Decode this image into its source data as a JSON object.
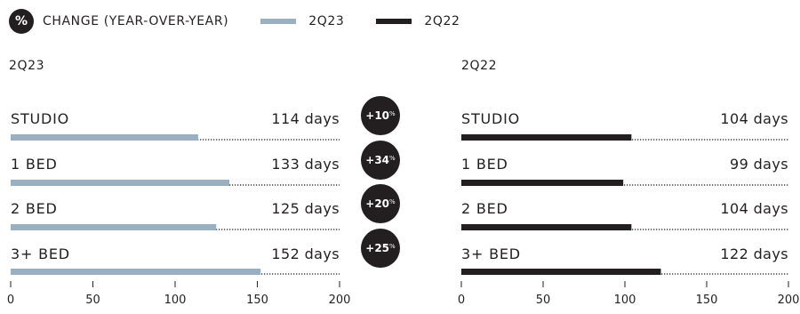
{
  "legend": {
    "badge": "%",
    "title": "CHANGE (YEAR-OVER-YEAR)",
    "series": [
      {
        "name": "2Q23",
        "color": "#9aafbf"
      },
      {
        "name": "2Q22",
        "color": "#231f20"
      }
    ]
  },
  "chart_data": {
    "type": "bar",
    "orientation": "horizontal",
    "categories": [
      "STUDIO",
      "1 BED",
      "2 BED",
      "3+ BED"
    ],
    "series": [
      {
        "name": "2Q23",
        "values": [
          114,
          133,
          125,
          152
        ],
        "labels": [
          "114 days",
          "133 days",
          "125 days",
          "152 days"
        ],
        "color": "#9aafbf"
      },
      {
        "name": "2Q22",
        "values": [
          104,
          99,
          104,
          122
        ],
        "labels": [
          "104 days",
          "99 days",
          "104 days",
          "122 days"
        ],
        "color": "#231f20"
      }
    ],
    "changes": [
      {
        "value": "+10",
        "unit": "%"
      },
      {
        "value": "+34",
        "unit": "%"
      },
      {
        "value": "+20",
        "unit": "%"
      },
      {
        "value": "+25",
        "unit": "%"
      }
    ],
    "xlim": [
      0,
      200
    ],
    "xticks": [
      "0",
      "50",
      "100",
      "150",
      "200"
    ]
  }
}
